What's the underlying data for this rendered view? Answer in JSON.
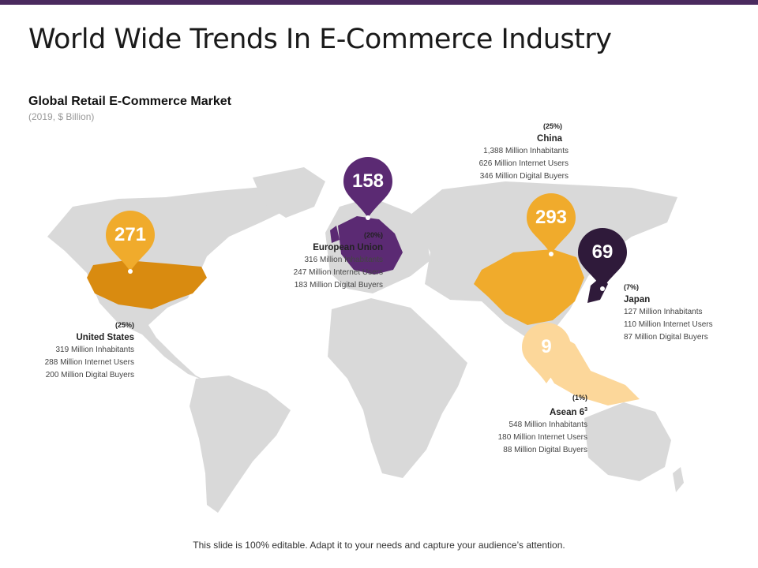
{
  "header": {
    "title": "World Wide Trends In E-Commerce Industry"
  },
  "market": {
    "title": "Global Retail E-Commerce Market",
    "note": "(2019, $ Billion)"
  },
  "colors": {
    "accent_purple": "#5b2a73",
    "dark_purple": "#2f1a3a",
    "orange": "#f0ab2c",
    "dark_orange": "#d98b10",
    "light_orange": "#fcd79a",
    "land": "#d9d9d9"
  },
  "regions": {
    "us": {
      "value": "271",
      "pct": "(25%)",
      "name": "United States",
      "inhabitants": "319 Million  Inhabitants",
      "internet": "288 Million  Internet Users",
      "buyers": "200 Million  Digital Buyers"
    },
    "eu": {
      "value": "158",
      "pct": "(20%)",
      "name": "European Union",
      "inhabitants": "316 Million  Inhabitants",
      "internet": "247 Million  Internet Users",
      "buyers": "183 Million  Digital Buyers"
    },
    "china": {
      "value": "293",
      "pct": "(25%)",
      "name": "China",
      "inhabitants": "1,388 Million  Inhabitants",
      "internet": "626 Million  Internet Users",
      "buyers": "346 Million  Digital Buyers"
    },
    "japan": {
      "value": "69",
      "pct": "(7%)",
      "name": "Japan",
      "inhabitants": "127 Million  Inhabitants",
      "internet": "110 Million  Internet Users",
      "buyers": "87 Million  Digital Buyers"
    },
    "asean": {
      "value": "9",
      "pct": "(1%)",
      "name": "Asean 6",
      "inhabitants": "548 Million  Inhabitants",
      "internet": "180 Million  Internet Users",
      "buyers": "88 Million  Digital Buyers"
    }
  },
  "footer": {
    "text": "This slide is 100% editable. Adapt it to your needs and capture your audience’s attention."
  }
}
